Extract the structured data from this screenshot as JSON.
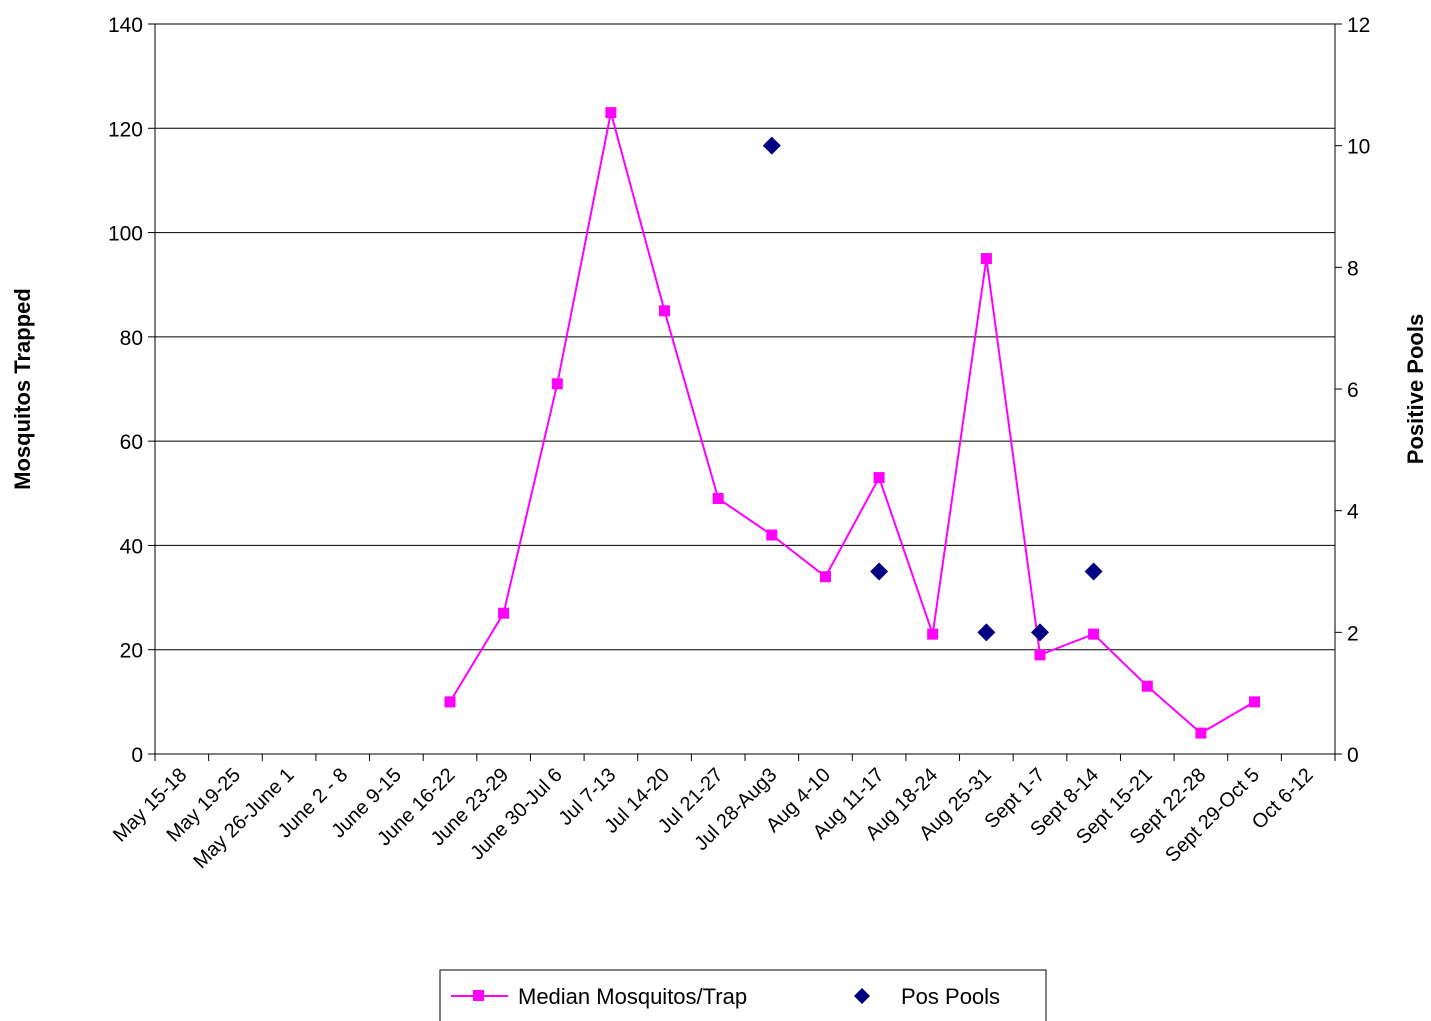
{
  "chart_data": {
    "type": "line",
    "categories": [
      "May 15-18",
      "May 19-25",
      "May 26-June 1",
      "June 2 - 8",
      "June 9-15",
      "June 16-22",
      "June 23-29",
      "June 30-Jul 6",
      "Jul 7-13",
      "Jul 14-20",
      "Jul 21-27",
      "Jul 28-Aug3",
      "Aug 4-10",
      "Aug 11-17",
      "Aug 18-24",
      "Aug 25-31",
      "Sept 1-7",
      "Sept 8-14",
      "Sept 15-21",
      "Sept 22-28",
      "Sept 29-Oct 5",
      "Oct 6-12"
    ],
    "series": [
      {
        "name": "Median Mosquitos/Trap",
        "axis": "left",
        "style": "line+square-markers",
        "color": "#FF00FF",
        "values": [
          null,
          null,
          null,
          null,
          null,
          10,
          27,
          71,
          123,
          85,
          49,
          42,
          34,
          53,
          23,
          95,
          19,
          23,
          13,
          4,
          10,
          null
        ]
      },
      {
        "name": "Pos Pools",
        "axis": "right",
        "style": "diamond-markers",
        "color": "#000080",
        "values": [
          null,
          null,
          null,
          null,
          null,
          null,
          null,
          null,
          null,
          null,
          null,
          10,
          null,
          3,
          null,
          2,
          2,
          3,
          null,
          null,
          null,
          null
        ]
      }
    ],
    "ylabel": "Mosquitos Trapped",
    "y2label": "Positive Pools",
    "ylim": [
      0,
      140
    ],
    "yticks": [
      "0",
      "20",
      "40",
      "60",
      "80",
      "100",
      "120",
      "140"
    ],
    "y2lim": [
      0,
      12
    ],
    "y2ticks": [
      "0",
      "2",
      "4",
      "6",
      "8",
      "10",
      "12"
    ],
    "grid": true,
    "legend_position": "bottom"
  }
}
